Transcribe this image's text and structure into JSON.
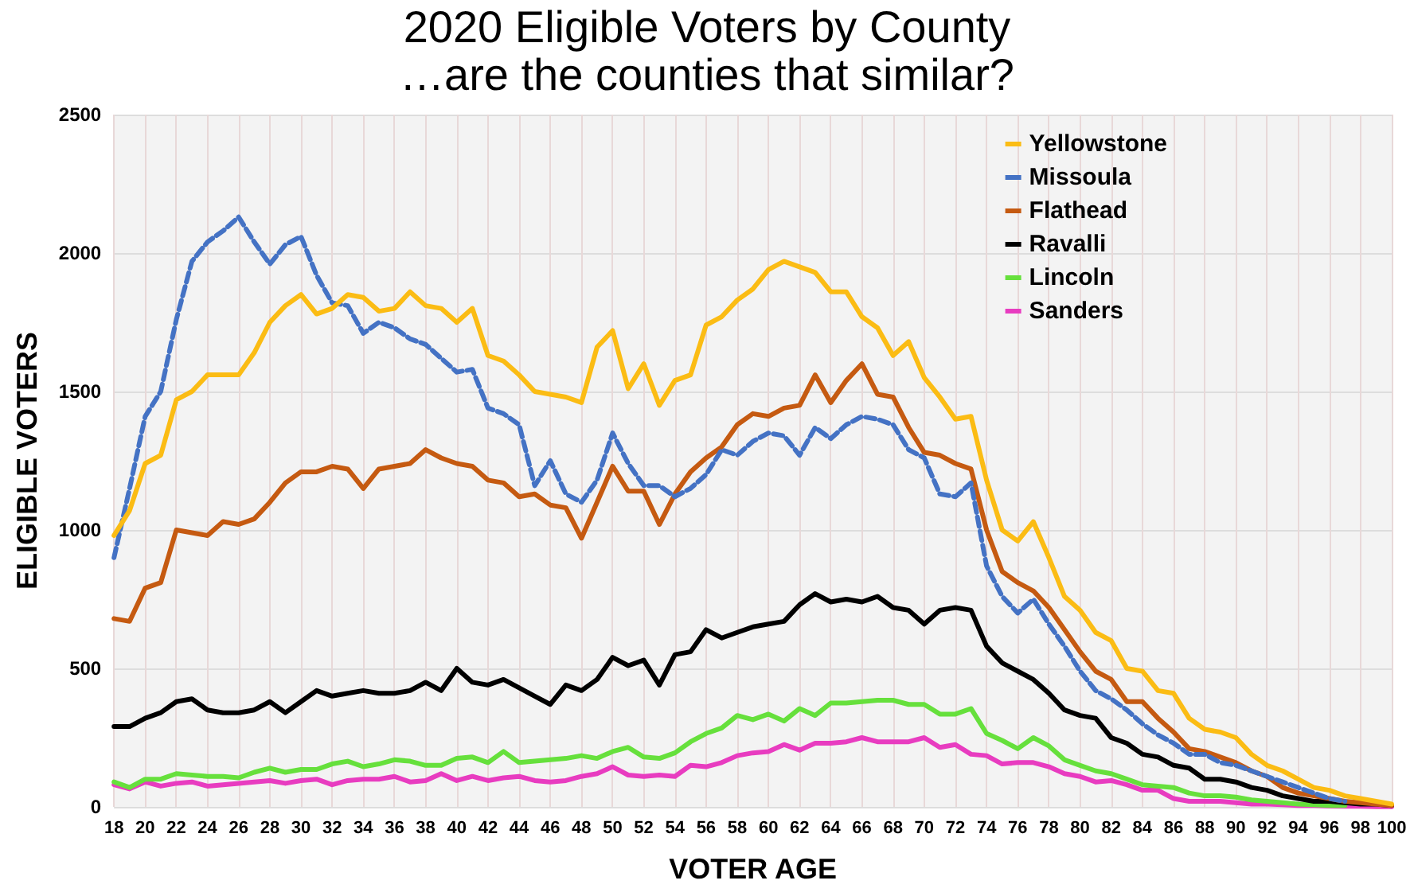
{
  "chart_data": {
    "type": "line",
    "title": "2020 Eligible Voters by County",
    "subtitle": "…are the counties that similar?",
    "xlabel": "VOTER AGE",
    "ylabel": "ELIGIBLE VOTERS",
    "x": [
      18,
      19,
      20,
      21,
      22,
      23,
      24,
      25,
      26,
      27,
      28,
      29,
      30,
      31,
      32,
      33,
      34,
      35,
      36,
      37,
      38,
      39,
      40,
      41,
      42,
      43,
      44,
      45,
      46,
      47,
      48,
      49,
      50,
      51,
      52,
      53,
      54,
      55,
      56,
      57,
      58,
      59,
      60,
      61,
      62,
      63,
      64,
      65,
      66,
      67,
      68,
      69,
      70,
      71,
      72,
      73,
      74,
      75,
      76,
      77,
      78,
      79,
      80,
      81,
      82,
      83,
      84,
      85,
      86,
      87,
      88,
      89,
      90,
      91,
      92,
      93,
      94,
      95,
      96,
      97,
      98,
      99,
      100
    ],
    "series": [
      {
        "name": "Yellowstone",
        "color": "#fbbc14",
        "line_style": "solid",
        "values": [
          980,
          1070,
          1240,
          1270,
          1470,
          1500,
          1560,
          1560,
          1560,
          1640,
          1750,
          1810,
          1850,
          1780,
          1800,
          1850,
          1840,
          1790,
          1800,
          1860,
          1810,
          1800,
          1750,
          1800,
          1630,
          1610,
          1560,
          1500,
          1490,
          1480,
          1460,
          1660,
          1720,
          1510,
          1600,
          1450,
          1540,
          1560,
          1740,
          1770,
          1830,
          1870,
          1940,
          1970,
          1950,
          1930,
          1860,
          1860,
          1770,
          1730,
          1630,
          1680,
          1550,
          1480,
          1400,
          1410,
          1180,
          1000,
          960,
          1030,
          900,
          760,
          710,
          630,
          600,
          500,
          490,
          420,
          410,
          320,
          280,
          270,
          250,
          190,
          150,
          130,
          100,
          70,
          60,
          40,
          30,
          20,
          10
        ]
      },
      {
        "name": "Missoula",
        "color": "#4472c4",
        "line_style": "dashed",
        "values": [
          900,
          1150,
          1410,
          1500,
          1760,
          1970,
          2040,
          2080,
          2130,
          2040,
          1960,
          2030,
          2060,
          1920,
          1820,
          1810,
          1710,
          1750,
          1730,
          1690,
          1670,
          1620,
          1570,
          1580,
          1440,
          1420,
          1380,
          1160,
          1250,
          1130,
          1100,
          1180,
          1350,
          1240,
          1160,
          1160,
          1120,
          1150,
          1200,
          1290,
          1270,
          1320,
          1350,
          1340,
          1270,
          1370,
          1330,
          1380,
          1410,
          1400,
          1380,
          1290,
          1260,
          1130,
          1120,
          1170,
          870,
          760,
          700,
          750,
          660,
          580,
          490,
          420,
          390,
          350,
          300,
          260,
          230,
          190,
          190,
          160,
          150,
          130,
          110,
          90,
          70,
          50,
          30,
          20,
          null,
          null,
          null
        ]
      },
      {
        "name": "Flathead",
        "color": "#c55a11",
        "line_style": "solid",
        "values": [
          680,
          670,
          790,
          810,
          1000,
          990,
          980,
          1030,
          1020,
          1040,
          1100,
          1170,
          1210,
          1210,
          1230,
          1220,
          1150,
          1220,
          1230,
          1240,
          1290,
          1260,
          1240,
          1230,
          1180,
          1170,
          1120,
          1130,
          1090,
          1080,
          970,
          1100,
          1230,
          1140,
          1140,
          1020,
          1130,
          1210,
          1260,
          1300,
          1380,
          1420,
          1410,
          1440,
          1450,
          1560,
          1460,
          1540,
          1600,
          1490,
          1480,
          1370,
          1280,
          1270,
          1240,
          1220,
          1000,
          850,
          810,
          780,
          720,
          640,
          560,
          490,
          460,
          380,
          380,
          320,
          270,
          210,
          200,
          180,
          160,
          130,
          110,
          70,
          50,
          40,
          30,
          20,
          15,
          10,
          5
        ]
      },
      {
        "name": "Ravalli",
        "color": "#000000",
        "line_style": "solid",
        "values": [
          290,
          290,
          320,
          340,
          380,
          390,
          350,
          340,
          340,
          350,
          380,
          340,
          380,
          420,
          400,
          410,
          420,
          410,
          410,
          420,
          450,
          420,
          500,
          450,
          440,
          460,
          430,
          400,
          370,
          440,
          420,
          460,
          540,
          510,
          530,
          440,
          550,
          560,
          640,
          610,
          630,
          650,
          660,
          670,
          730,
          770,
          740,
          750,
          740,
          760,
          720,
          710,
          660,
          710,
          720,
          710,
          580,
          520,
          490,
          460,
          410,
          350,
          330,
          320,
          250,
          230,
          190,
          180,
          150,
          140,
          100,
          100,
          90,
          70,
          60,
          40,
          30,
          20,
          20,
          15,
          10,
          10,
          5
        ]
      },
      {
        "name": "Lincoln",
        "color": "#66e03c",
        "line_style": "solid",
        "values": [
          90,
          70,
          100,
          100,
          120,
          115,
          110,
          110,
          105,
          125,
          140,
          125,
          135,
          135,
          155,
          165,
          145,
          155,
          170,
          165,
          150,
          150,
          175,
          180,
          160,
          200,
          160,
          165,
          170,
          175,
          185,
          175,
          200,
          215,
          180,
          175,
          195,
          235,
          265,
          285,
          330,
          315,
          335,
          310,
          355,
          330,
          375,
          375,
          380,
          385,
          385,
          370,
          370,
          335,
          335,
          355,
          265,
          240,
          210,
          250,
          220,
          170,
          150,
          130,
          120,
          100,
          80,
          75,
          70,
          50,
          40,
          40,
          35,
          25,
          20,
          15,
          10,
          8,
          5,
          5,
          null,
          null,
          null
        ]
      },
      {
        "name": "Sanders",
        "color": "#e83cc0",
        "line_style": "solid",
        "values": [
          80,
          65,
          90,
          75,
          85,
          90,
          75,
          80,
          85,
          90,
          95,
          85,
          95,
          100,
          80,
          95,
          100,
          100,
          110,
          90,
          95,
          120,
          95,
          110,
          95,
          105,
          110,
          95,
          90,
          95,
          110,
          120,
          145,
          115,
          110,
          115,
          110,
          150,
          145,
          160,
          185,
          195,
          200,
          225,
          205,
          230,
          230,
          235,
          250,
          235,
          235,
          235,
          250,
          215,
          225,
          190,
          185,
          155,
          160,
          160,
          145,
          120,
          110,
          90,
          95,
          80,
          60,
          60,
          30,
          20,
          20,
          20,
          15,
          10,
          10,
          8,
          5,
          5,
          3,
          2,
          2,
          1,
          1
        ]
      }
    ],
    "xlim": [
      18,
      100
    ],
    "xticks": [
      18,
      20,
      22,
      24,
      26,
      28,
      30,
      32,
      34,
      36,
      38,
      40,
      42,
      44,
      46,
      48,
      50,
      52,
      54,
      56,
      58,
      60,
      62,
      64,
      66,
      68,
      70,
      72,
      74,
      76,
      78,
      80,
      82,
      84,
      86,
      88,
      90,
      92,
      94,
      96,
      98,
      100
    ],
    "ylim": [
      0,
      2500
    ],
    "yticks": [
      0,
      500,
      1000,
      1500,
      2000,
      2500
    ],
    "grid": true,
    "legend": "top right",
    "marker": "none"
  }
}
